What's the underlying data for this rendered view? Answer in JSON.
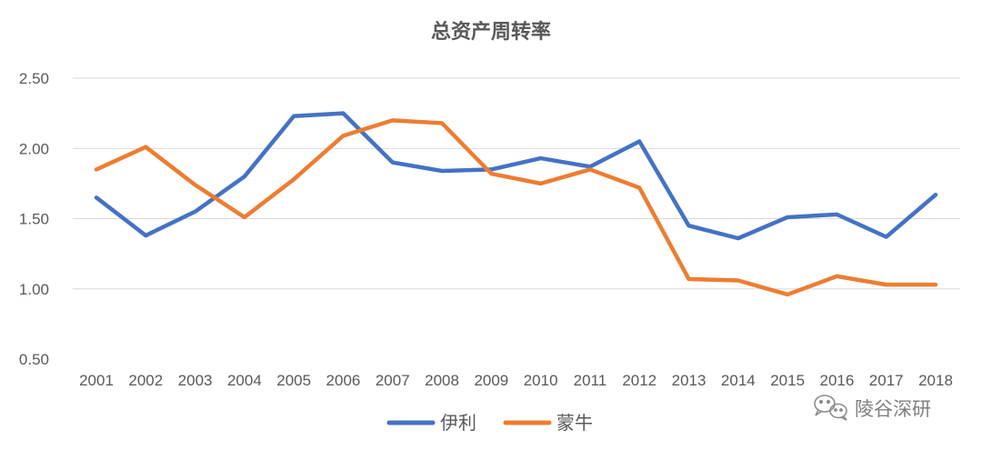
{
  "chart_data": {
    "type": "line",
    "title": "总资产周转率",
    "categories": [
      "2001",
      "2002",
      "2003",
      "2004",
      "2005",
      "2006",
      "2007",
      "2008",
      "2009",
      "2010",
      "2011",
      "2012",
      "2013",
      "2014",
      "2015",
      "2016",
      "2017",
      "2018"
    ],
    "series": [
      {
        "name": "伊利",
        "color": "#4472C4",
        "values": [
          1.65,
          1.38,
          1.55,
          1.8,
          2.23,
          2.25,
          1.9,
          1.84,
          1.85,
          1.93,
          1.87,
          2.05,
          1.45,
          1.36,
          1.51,
          1.53,
          1.37,
          1.67
        ]
      },
      {
        "name": "蒙牛",
        "color": "#ED7D31",
        "values": [
          1.85,
          2.01,
          1.74,
          1.51,
          1.78,
          2.09,
          2.2,
          2.18,
          1.82,
          1.75,
          1.85,
          1.72,
          1.07,
          1.06,
          0.96,
          1.09,
          1.03,
          1.03
        ]
      }
    ],
    "yticks": [
      "0.50",
      "1.00",
      "1.50",
      "2.00",
      "2.50"
    ],
    "ylim": [
      0.5,
      2.5
    ],
    "grid": true,
    "legend_position": "bottom"
  },
  "watermark": {
    "text": "陵谷深研",
    "icon": "wechat-icon"
  }
}
